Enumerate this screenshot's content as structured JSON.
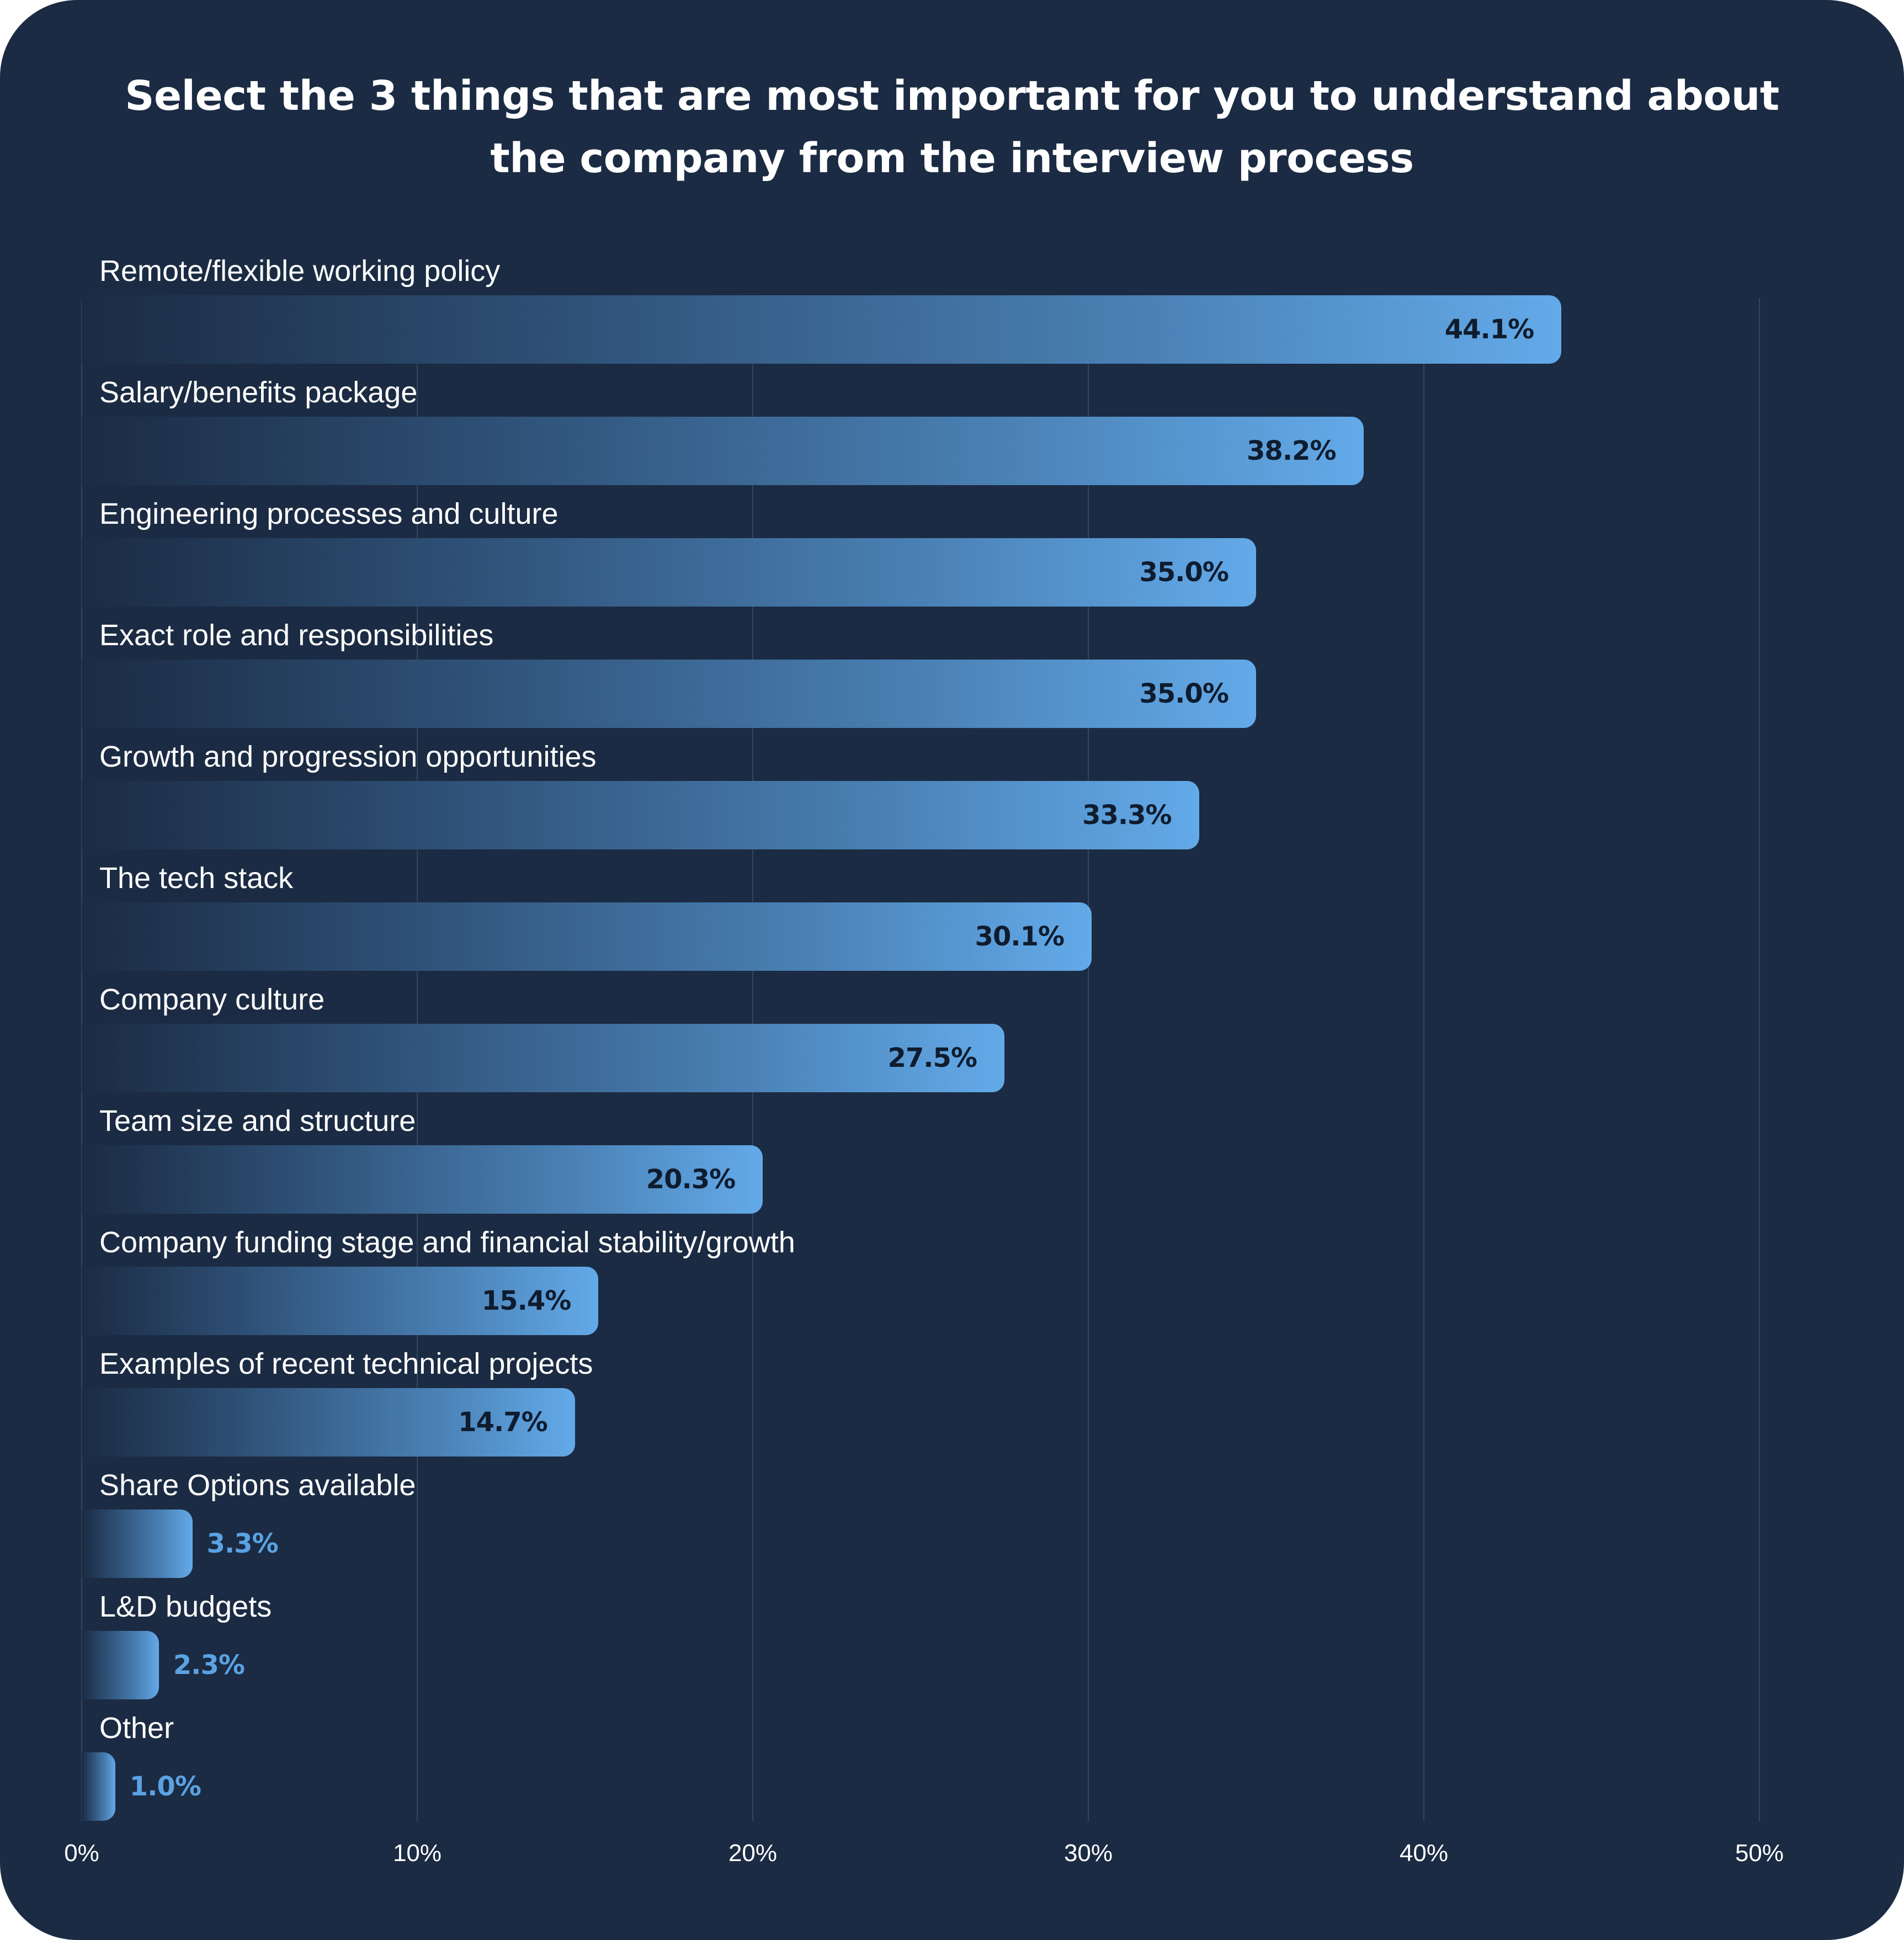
{
  "chart_data": {
    "type": "bar",
    "orientation": "horizontal",
    "title": "Select the 3 things that are most important for you to understand about the company from the interview process",
    "title_lines": [
      "Select the 3 things that are most important for you to understand about",
      "the company from the interview process"
    ],
    "categories": [
      "Remote/flexible working policy",
      "Salary/benefits package",
      "Engineering processes and culture",
      "Exact role and responsibilities",
      "Growth and progression opportunities",
      "The tech stack",
      "Company culture",
      "Team size and structure",
      "Company funding stage and financial stability/growth",
      "Examples of recent technical projects",
      "Share Options available",
      "L&D budgets",
      "Other"
    ],
    "values": [
      44.1,
      38.2,
      35.0,
      35.0,
      33.3,
      30.1,
      27.5,
      20.3,
      15.4,
      14.7,
      3.3,
      2.3,
      1.0
    ],
    "value_labels": [
      "44.1%",
      "38.2%",
      "35.0%",
      "35.0%",
      "33.3%",
      "30.1%",
      "27.5%",
      "20.3%",
      "15.4%",
      "14.7%",
      "3.3%",
      "2.3%",
      "1.0%"
    ],
    "xlim": [
      0,
      50
    ],
    "x_ticks": [
      0,
      10,
      20,
      30,
      40,
      50
    ],
    "x_tick_labels": [
      "0%",
      "10%",
      "20%",
      "30%",
      "40%",
      "50%"
    ],
    "xlabel": "",
    "ylabel": "",
    "grid": "vertical",
    "legend": "none",
    "colors": {
      "background": "#1b2b43",
      "bar_start": "#1b2b43",
      "bar_end": "#63aae9",
      "value_inside": "#0f1c2e",
      "value_outside": "#5aa2e3",
      "gridline": "#34455e",
      "text": "#ffffff"
    }
  }
}
